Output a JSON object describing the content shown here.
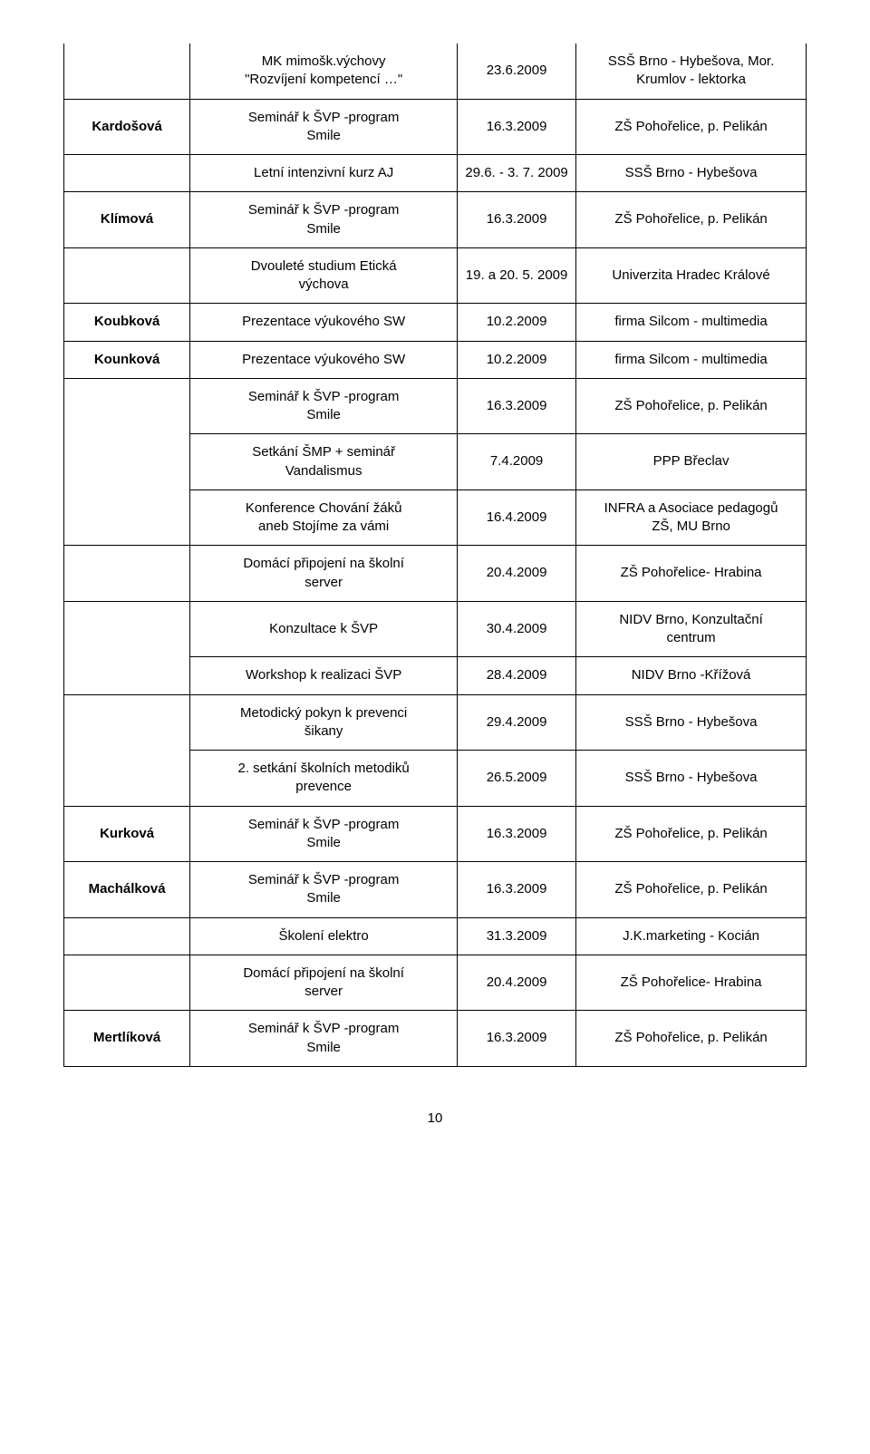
{
  "colors": {
    "bg": "#ffffff",
    "text": "#000000"
  },
  "font": {
    "family": "Arial",
    "size_pt": 11
  },
  "page_number": "10",
  "groups": [
    {
      "name": "",
      "rows": [
        {
          "event": "MK mimošk.výchovy\n\"Rozvíjení kompetencí …\"",
          "date": "23.6.2009",
          "place": "SSŠ Brno - Hybešova, Mor.\nKrumlov - lektorka",
          "sep": "thick"
        }
      ]
    },
    {
      "name": "Kardošová",
      "rows": [
        {
          "event": "Seminář k ŠVP -program\nSmile",
          "date": "16.3.2009",
          "place": "ZŠ Pohořelice, p. Pelikán",
          "sep": "thick"
        }
      ]
    },
    {
      "name": "",
      "rows": [
        {
          "event": "Letní intenzivní kurz AJ",
          "date": "29.6. - 3. 7. 2009",
          "place": "SSŠ Brno - Hybešova",
          "sep": "thick"
        }
      ]
    },
    {
      "name": "Klímová",
      "rows": [
        {
          "event": "Seminář k ŠVP -program\nSmile",
          "date": "16.3.2009",
          "place": "ZŠ Pohořelice, p. Pelikán",
          "sep": "thick"
        }
      ]
    },
    {
      "name": "",
      "rows": [
        {
          "event": "Dvouleté studium Etická\nvýchova",
          "date": "19. a 20. 5. 2009",
          "place": "Univerzita Hradec Králové",
          "sep": "thick"
        }
      ]
    },
    {
      "name": "Koubková",
      "rows": [
        {
          "event": "Prezentace výukového SW",
          "date": "10.2.2009",
          "place": "firma Silcom - multimedia",
          "sep": "thick"
        }
      ]
    },
    {
      "name": "Kounková",
      "rows": [
        {
          "event": "Prezentace výukového SW",
          "date": "10.2.2009",
          "place": "firma Silcom - multimedia",
          "sep": "thick"
        }
      ]
    },
    {
      "name": "",
      "rows": [
        {
          "event": "Seminář k ŠVP -program\nSmile",
          "date": "16.3.2009",
          "place": "ZŠ Pohořelice, p. Pelikán",
          "sep": "thin"
        },
        {
          "event": "Setkání ŠMP + seminář\nVandalismus",
          "date": "7.4.2009",
          "place": "PPP Břeclav",
          "sep": "thin"
        },
        {
          "event": "Konference Chování žáků\naneb Stojíme za vámi",
          "date": "16.4.2009",
          "place": "INFRA a Asociace pedagogů\nZŠ, MU Brno",
          "sep": "thick"
        }
      ]
    },
    {
      "name": "",
      "rows": [
        {
          "event": "Domácí připojení na školní\nserver",
          "date": "20.4.2009",
          "place": "ZŠ Pohořelice- Hrabina",
          "sep": "thick"
        }
      ]
    },
    {
      "name": "",
      "rows": [
        {
          "event": "Konzultace k ŠVP",
          "date": "30.4.2009",
          "place": "NIDV Brno, Konzultační\ncentrum",
          "sep": "thin"
        },
        {
          "event": "Workshop k realizaci ŠVP",
          "date": "28.4.2009",
          "place": "NIDV Brno -Křížová",
          "sep": "thick"
        }
      ]
    },
    {
      "name": "",
      "rows": [
        {
          "event": "Metodický pokyn k prevenci\nšikany",
          "date": "29.4.2009",
          "place": "SSŠ Brno - Hybešova",
          "sep": "thin"
        },
        {
          "event": "2. setkání školních metodiků\nprevence",
          "date": "26.5.2009",
          "place": "SSŠ Brno - Hybešova",
          "sep": "thick"
        }
      ]
    },
    {
      "name": "Kurková",
      "rows": [
        {
          "event": "Seminář k ŠVP -program\nSmile",
          "date": "16.3.2009",
          "place": "ZŠ Pohořelice, p. Pelikán",
          "sep": "thick"
        }
      ]
    },
    {
      "name": "Machálková",
      "rows": [
        {
          "event": "Seminář k ŠVP -program\nSmile",
          "date": "16.3.2009",
          "place": "ZŠ Pohořelice, p. Pelikán",
          "sep": "thick"
        }
      ]
    },
    {
      "name": "",
      "rows": [
        {
          "event": "Školení elektro",
          "date": "31.3.2009",
          "place": "J.K.marketing - Kocián",
          "sep": "thick"
        }
      ]
    },
    {
      "name": "",
      "rows": [
        {
          "event": "Domácí připojení na školní\nserver",
          "date": "20.4.2009",
          "place": "ZŠ Pohořelice- Hrabina",
          "sep": "thick"
        }
      ]
    },
    {
      "name": "Mertlíková",
      "rows": [
        {
          "event": "Seminář k ŠVP -program\nSmile",
          "date": "16.3.2009",
          "place": "ZŠ Pohořelice, p. Pelikán",
          "sep": "thick"
        }
      ]
    }
  ]
}
